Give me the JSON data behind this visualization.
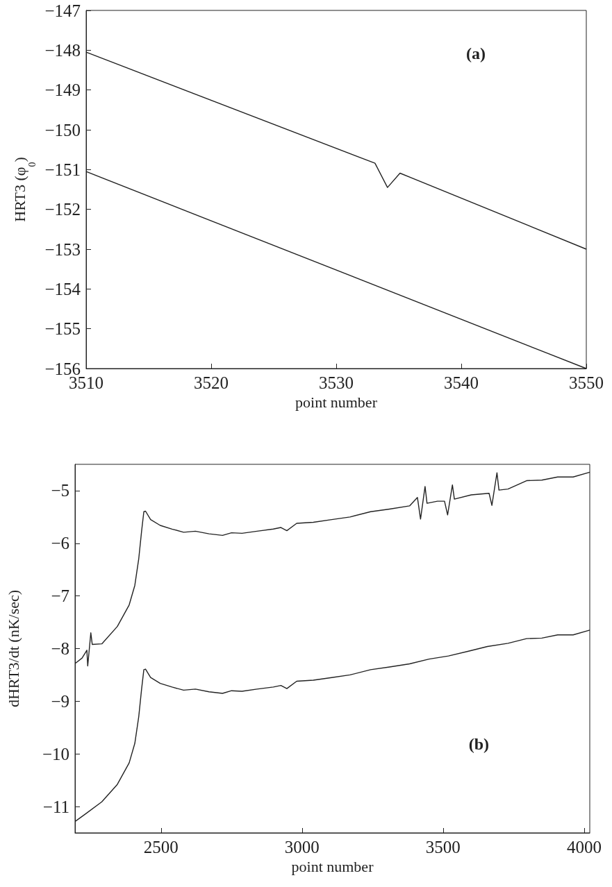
{
  "chart_data": [
    {
      "type": "line",
      "xlabel": "point number",
      "ylabel": "HRT3 (φ$_{0}$)",
      "annotations": [
        "(a)"
      ],
      "xlim": [
        3510,
        3550
      ],
      "ylim": [
        -156,
        -147
      ],
      "xticks": [
        3510,
        3520,
        3530,
        3540,
        3550
      ],
      "yticks": [
        -156,
        -155,
        -154,
        -153,
        -152,
        -151,
        -150,
        -149,
        -148,
        -147
      ],
      "marker": "none",
      "line_style": "solid",
      "series": [
        {
          "color": "#222222",
          "x": [
            3510,
            3533.1,
            3534.1,
            3535.1,
            3550
          ],
          "values": [
            -148.05,
            -150.84,
            -151.45,
            -151.09,
            -153.0
          ]
        },
        {
          "color": "#222222",
          "x": [
            3510,
            3550
          ],
          "values": [
            -151.05,
            -156.0
          ]
        }
      ]
    },
    {
      "type": "line",
      "xlabel": "point number",
      "ylabel": "dHRT3/dt (nK/sec)",
      "annotations": [
        "(b)"
      ],
      "xlim": [
        2195,
        4020
      ],
      "ylim": [
        -11.5,
        -4.5
      ],
      "xticks": [
        2500,
        3000,
        3500,
        4000
      ],
      "yticks": [
        -11,
        -10,
        -9,
        -8,
        -7,
        -6,
        -5
      ],
      "marker": "none",
      "line_style": "solid",
      "series": [
        {
          "color": "#222222",
          "x": [
            2196,
            2220,
            2237,
            2240,
            2251,
            2256,
            2290,
            2345,
            2387,
            2407,
            2421,
            2431,
            2439,
            2445,
            2463,
            2497,
            2539,
            2580,
            2622,
            2670,
            2718,
            2750,
            2787,
            2840,
            2898,
            2925,
            2946,
            2981,
            3040,
            3105,
            3170,
            3243,
            3310,
            3381,
            3409,
            3420,
            3436,
            3443,
            3480,
            3505,
            3516,
            3533,
            3540,
            3600,
            3663,
            3673,
            3691,
            3698,
            3730,
            3796,
            3850,
            3906,
            3961,
            4020
          ],
          "values": [
            -8.28,
            -8.18,
            -8.03,
            -8.33,
            -7.7,
            -7.92,
            -7.91,
            -7.58,
            -7.17,
            -6.8,
            -6.29,
            -5.77,
            -5.4,
            -5.39,
            -5.55,
            -5.66,
            -5.73,
            -5.79,
            -5.77,
            -5.82,
            -5.85,
            -5.8,
            -5.81,
            -5.77,
            -5.73,
            -5.7,
            -5.76,
            -5.62,
            -5.6,
            -5.55,
            -5.5,
            -5.4,
            -5.35,
            -5.29,
            -5.13,
            -5.54,
            -4.92,
            -5.24,
            -5.2,
            -5.2,
            -5.46,
            -4.89,
            -5.16,
            -5.08,
            -5.05,
            -5.28,
            -4.66,
            -4.99,
            -4.97,
            -4.81,
            -4.8,
            -4.74,
            -4.74,
            -4.65
          ]
        },
        {
          "color": "#222222",
          "x": [
            2196,
            2235,
            2290,
            2345,
            2387,
            2407,
            2421,
            2431,
            2439,
            2445,
            2463,
            2497,
            2539,
            2580,
            2622,
            2670,
            2718,
            2750,
            2787,
            2840,
            2898,
            2925,
            2946,
            2981,
            3040,
            3105,
            3170,
            3243,
            3310,
            3381,
            3450,
            3519,
            3590,
            3657,
            3730,
            3796,
            3850,
            3906,
            3961,
            4020
          ],
          "values": [
            -11.28,
            -11.13,
            -10.91,
            -10.58,
            -10.17,
            -9.8,
            -9.29,
            -8.77,
            -8.4,
            -8.39,
            -8.55,
            -8.66,
            -8.73,
            -8.79,
            -8.77,
            -8.82,
            -8.85,
            -8.8,
            -8.81,
            -8.77,
            -8.73,
            -8.7,
            -8.76,
            -8.62,
            -8.6,
            -8.55,
            -8.5,
            -8.4,
            -8.35,
            -8.29,
            -8.2,
            -8.14,
            -8.05,
            -7.96,
            -7.9,
            -7.81,
            -7.8,
            -7.74,
            -7.74,
            -7.65
          ]
        }
      ]
    }
  ]
}
